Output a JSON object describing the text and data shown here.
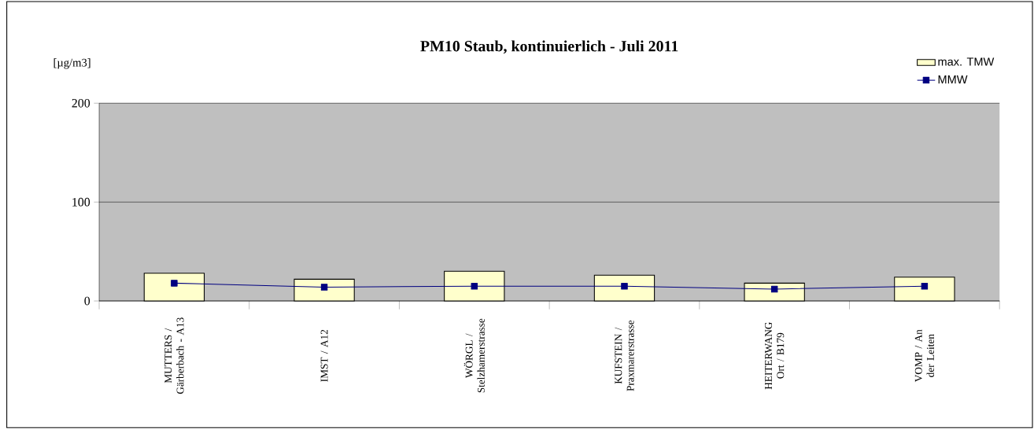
{
  "chart_data": {
    "type": "bar",
    "title": "PM10 Staub, kontinuierlich - Juli 2011",
    "ylabel": "[µg/m3]",
    "categories": [
      "MUTTERS / Gärberbach - A13",
      "IMST / A12",
      "WÖRGL / Stelzhamerstrasse",
      "KUFSTEIN / Praxmarerstrasse",
      "HEITERWANG Ort / B179",
      "VOMP / An der Leiten"
    ],
    "series": [
      {
        "name": "max. TMW",
        "color": "#ffffcc",
        "values": [
          28,
          22,
          30,
          26,
          18,
          24
        ]
      },
      {
        "name": "MMW",
        "type": "line",
        "color": "#000080",
        "marker": "square",
        "values": [
          18,
          14,
          15,
          15,
          12,
          15
        ]
      }
    ],
    "ylim": [
      0,
      200
    ],
    "yticks": [
      0,
      100,
      200
    ],
    "grid": "y",
    "legend": "top right"
  }
}
